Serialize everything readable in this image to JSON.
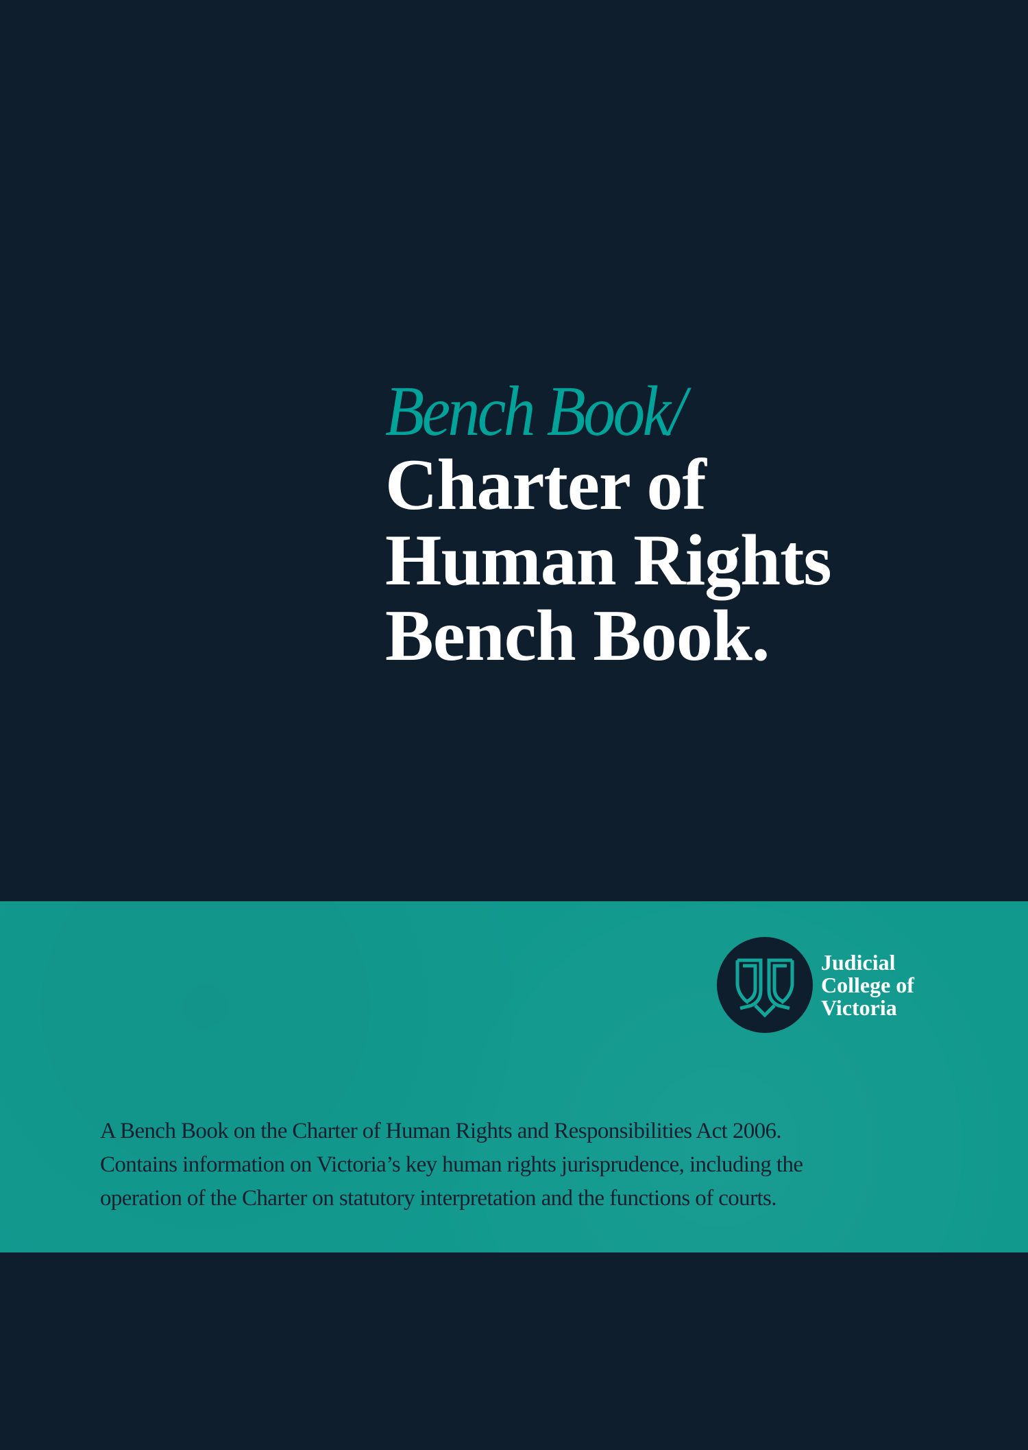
{
  "cover": {
    "subtitle": "Bench Book/",
    "title_lines": [
      "Charter of",
      "Human Rights",
      "Bench Book."
    ]
  },
  "logo": {
    "icon": "judicial-college-emblem-icon",
    "lines": [
      "Judicial",
      "College of",
      "Victoria"
    ]
  },
  "description": {
    "lines": [
      "A Bench Book on the Charter of Human Rights and Responsibilities Act 2006.",
      "Contains information on Victoria’s key human rights jurisprudence, including the",
      "operation of the Charter on statutory interpretation and the functions of courts."
    ]
  },
  "colors": {
    "background": "#0f1e2d",
    "band": "#12998e",
    "accent": "#00a39a",
    "title": "#ffffff"
  }
}
